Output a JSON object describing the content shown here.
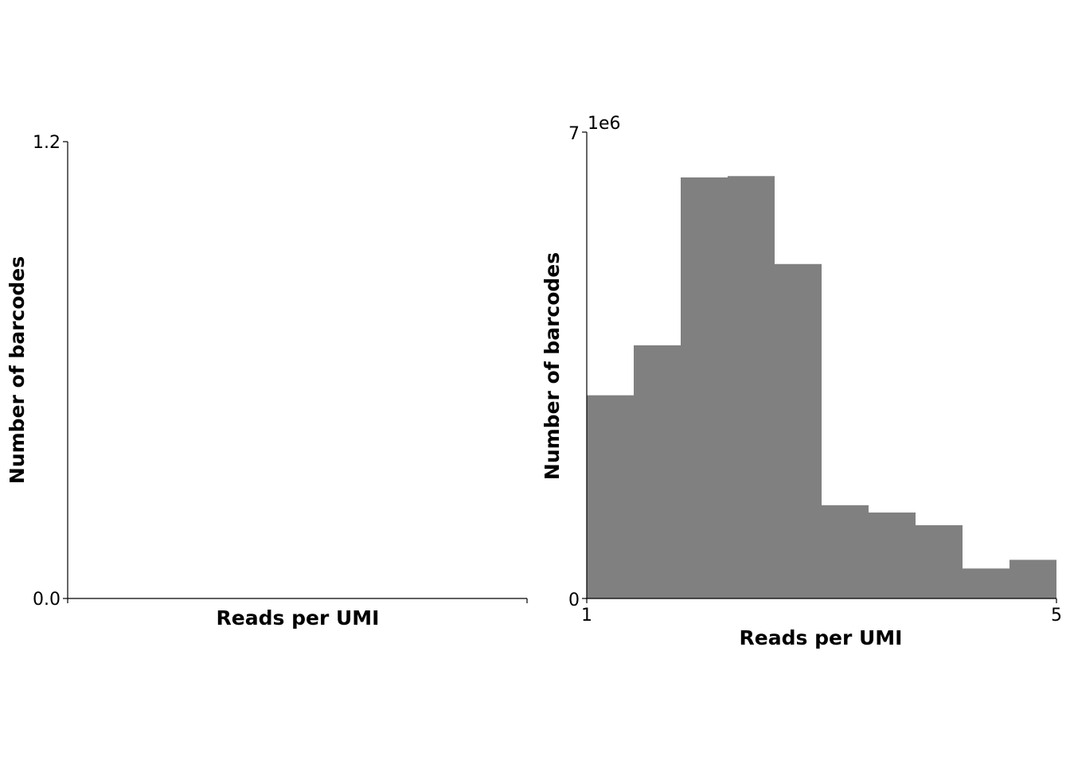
{
  "chart_data": [
    {
      "type": "bar",
      "xlabel": "Reads per UMI",
      "ylabel": "Number of barcodes",
      "ylim": [
        0.0,
        1.2
      ],
      "y_ticks": [
        "0.0",
        "1.2"
      ],
      "x_ticks": [],
      "bins": [],
      "values": [],
      "grid": false
    },
    {
      "type": "bar",
      "xlabel": "Reads per UMI",
      "ylabel": "Number of barcodes",
      "ylim": [
        0,
        7000000
      ],
      "xlim": [
        1,
        5
      ],
      "y_ticks": [
        "0",
        "7"
      ],
      "y_offset_label": "1e6",
      "x_ticks": [
        "1",
        "5"
      ],
      "bin_edges": [
        1.0,
        1.4,
        1.8,
        2.2,
        2.6,
        3.0,
        3.4,
        3.8,
        4.2,
        4.6,
        5.0
      ],
      "values": [
        3050000,
        3800000,
        6320000,
        6340000,
        5020000,
        1400000,
        1290000,
        1100000,
        450000,
        580000
      ],
      "color": "#808080",
      "grid": false
    }
  ]
}
